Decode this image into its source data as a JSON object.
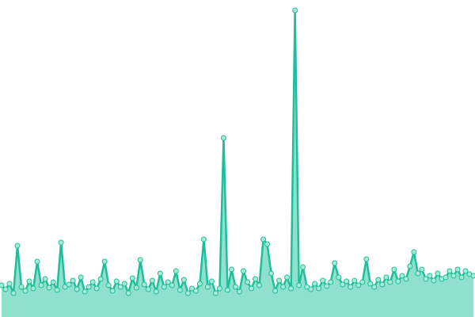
{
  "chart_data": {
    "type": "area-line",
    "x": [
      0,
      1,
      2,
      3,
      4,
      5,
      6,
      7,
      8,
      9,
      10,
      11,
      12,
      13,
      14,
      15,
      16,
      17,
      18,
      19,
      20,
      21,
      22,
      23,
      24,
      25,
      26,
      27,
      28,
      29,
      30,
      31,
      32,
      33,
      34,
      35,
      36,
      37,
      38,
      39,
      40,
      41,
      42,
      43,
      44,
      45,
      46,
      47,
      48,
      49,
      50,
      51,
      52,
      53,
      54,
      55,
      56,
      57,
      58,
      59,
      60,
      61,
      62,
      63,
      64,
      65,
      66,
      67,
      68,
      69,
      70,
      71,
      72,
      73,
      74,
      75,
      76,
      77,
      78,
      79,
      80,
      81,
      82,
      83,
      84,
      85,
      86,
      87,
      88,
      89,
      90,
      91,
      92,
      93,
      94,
      95,
      96,
      97,
      98,
      99,
      100,
      101,
      102,
      103,
      104,
      105,
      106,
      107,
      108,
      109,
      110,
      111,
      112,
      113,
      114,
      115,
      116,
      117,
      118,
      119
    ],
    "series": [
      {
        "color": "#20bf9b",
        "fill": "#8fe0cc",
        "marker_fill": "#a8ead6",
        "values": [
          40,
          35,
          42,
          30,
          90,
          38,
          33,
          45,
          36,
          70,
          40,
          48,
          37,
          44,
          34,
          94,
          38,
          41,
          46,
          35,
          50,
          32,
          38,
          44,
          36,
          48,
          70,
          40,
          33,
          45,
          38,
          42,
          30,
          49,
          37,
          72,
          41,
          35,
          46,
          32,
          55,
          38,
          44,
          40,
          58,
          34,
          47,
          30,
          36,
          33,
          42,
          98,
          38,
          45,
          30,
          36,
          226,
          34,
          60,
          38,
          32,
          58,
          44,
          36,
          48,
          40,
          98,
          92,
          55,
          33,
          46,
          38,
          50,
          36,
          387,
          40,
          63,
          38,
          35,
          42,
          36,
          46,
          39,
          44,
          68,
          50,
          41,
          45,
          38,
          46,
          40,
          44,
          73,
          42,
          38,
          47,
          41,
          50,
          44,
          60,
          45,
          52,
          48,
          64,
          82,
          55,
          60,
          48,
          52,
          46,
          55,
          48,
          50,
          58,
          52,
          60,
          50,
          58,
          54,
          52
        ]
      }
    ],
    "xlim": [
      0,
      119
    ],
    "ylim": [
      0,
      400
    ]
  }
}
